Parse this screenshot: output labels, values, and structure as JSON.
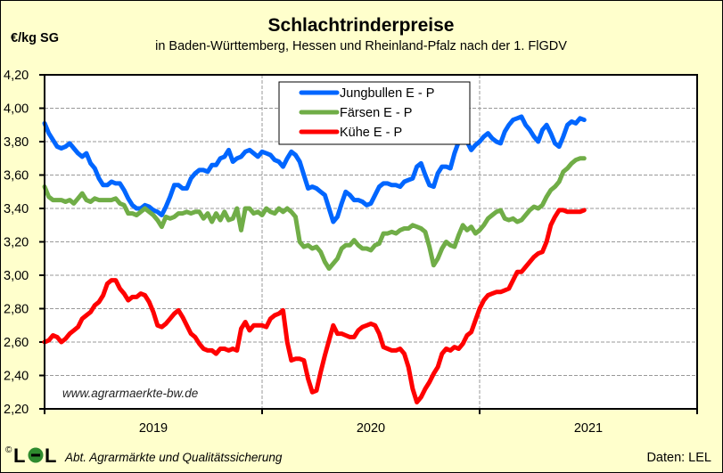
{
  "chart_data": {
    "type": "line",
    "title": "Schlachtrinderpreise",
    "subtitle": "in Baden-Württemberg, Hessen  und  Rheinland-Pfalz  nach der 1. FlGDV",
    "ylabel": "€/kg SG",
    "xlabel": "",
    "ylim": [
      2.2,
      4.2
    ],
    "yticks": [
      "2,20",
      "2,40",
      "2,60",
      "2,80",
      "3,00",
      "3,20",
      "3,40",
      "3,60",
      "3,80",
      "4,00",
      "4,20"
    ],
    "ytick_values": [
      2.2,
      2.4,
      2.6,
      2.8,
      3.0,
      3.2,
      3.4,
      3.6,
      3.8,
      4.0,
      4.2
    ],
    "x_unit": "weeks since start of plotted period (52 weeks per year band)",
    "xlim": [
      0,
      156
    ],
    "year_labels": [
      "2019",
      "2020",
      "2021"
    ],
    "year_boundaries": [
      52,
      104
    ],
    "grid": true,
    "legend_position": "top-center",
    "watermark": "www.agrarmaerkte-bw.de",
    "series": [
      {
        "name": "Jungbullen E - P",
        "color": "#0066ff",
        "x": [
          0,
          1,
          2,
          3,
          4,
          5,
          6,
          7,
          8,
          9,
          10,
          11,
          12,
          13,
          14,
          15,
          16,
          17,
          18,
          19,
          20,
          21,
          22,
          23,
          24,
          25,
          26,
          27,
          28,
          29,
          30,
          31,
          32,
          33,
          34,
          35,
          36,
          37,
          38,
          39,
          40,
          41,
          42,
          43,
          44,
          45,
          46,
          47,
          48,
          49,
          50,
          51,
          52,
          53,
          54,
          55,
          56,
          57,
          58,
          59,
          60,
          61,
          62,
          63,
          64,
          65,
          66,
          67,
          68,
          69,
          70,
          71,
          72,
          73,
          74,
          75,
          76,
          77,
          78,
          79,
          80,
          81,
          82,
          83,
          84,
          85,
          86,
          87,
          88,
          89,
          90,
          91,
          92,
          93,
          94,
          95,
          96,
          97,
          98,
          99,
          100,
          101,
          102,
          103,
          104,
          105,
          106,
          107,
          108,
          109,
          110,
          111,
          112,
          113,
          114,
          115,
          116,
          117,
          118,
          119,
          120,
          121,
          122,
          123,
          124,
          125,
          126,
          127,
          128,
          129
        ],
        "values": [
          3.91,
          3.85,
          3.81,
          3.77,
          3.76,
          3.77,
          3.79,
          3.76,
          3.73,
          3.71,
          3.73,
          3.67,
          3.64,
          3.58,
          3.54,
          3.54,
          3.56,
          3.55,
          3.55,
          3.51,
          3.46,
          3.42,
          3.4,
          3.4,
          3.42,
          3.41,
          3.39,
          3.38,
          3.36,
          3.41,
          3.47,
          3.54,
          3.54,
          3.52,
          3.52,
          3.58,
          3.61,
          3.63,
          3.63,
          3.62,
          3.66,
          3.66,
          3.7,
          3.71,
          3.75,
          3.68,
          3.7,
          3.71,
          3.74,
          3.75,
          3.73,
          3.71,
          3.74,
          3.73,
          3.72,
          3.69,
          3.68,
          3.65,
          3.7,
          3.74,
          3.72,
          3.68,
          3.6,
          3.52,
          3.53,
          3.52,
          3.5,
          3.48,
          3.4,
          3.32,
          3.35,
          3.43,
          3.5,
          3.48,
          3.45,
          3.45,
          3.44,
          3.42,
          3.43,
          3.48,
          3.53,
          3.55,
          3.55,
          3.54,
          3.54,
          3.53,
          3.56,
          3.57,
          3.58,
          3.65,
          3.67,
          3.6,
          3.54,
          3.53,
          3.61,
          3.65,
          3.65,
          3.64,
          3.73,
          3.8,
          3.82,
          3.8,
          3.75,
          3.78,
          3.8,
          3.83,
          3.85,
          3.82,
          3.8,
          3.79,
          3.86,
          3.9,
          3.93,
          3.94,
          3.95,
          3.9,
          3.87,
          3.83,
          3.8,
          3.87,
          3.9,
          3.85,
          3.79,
          3.77,
          3.83,
          3.9,
          3.92,
          3.91,
          3.94,
          3.93
        ],
        "_note": "values sampled weekly"
      },
      {
        "name": "Färsen E - P",
        "color": "#70ad47",
        "x": [
          0,
          1,
          2,
          3,
          4,
          5,
          6,
          7,
          8,
          9,
          10,
          11,
          12,
          13,
          14,
          15,
          16,
          17,
          18,
          19,
          20,
          21,
          22,
          23,
          24,
          25,
          26,
          27,
          28,
          29,
          30,
          31,
          32,
          33,
          34,
          35,
          36,
          37,
          38,
          39,
          40,
          41,
          42,
          43,
          44,
          45,
          46,
          47,
          48,
          49,
          50,
          51,
          52,
          53,
          54,
          55,
          56,
          57,
          58,
          59,
          60,
          61,
          62,
          63,
          64,
          65,
          66,
          67,
          68,
          69,
          70,
          71,
          72,
          73,
          74,
          75,
          76,
          77,
          78,
          79,
          80,
          81,
          82,
          83,
          84,
          85,
          86,
          87,
          88,
          89,
          90,
          91,
          92,
          93,
          94,
          95,
          96,
          97,
          98,
          99,
          100,
          101,
          102,
          103,
          104,
          105,
          106,
          107,
          108,
          109,
          110,
          111,
          112,
          113,
          114,
          115,
          116,
          117,
          118,
          119,
          120,
          121,
          122,
          123,
          124,
          125,
          126,
          127,
          128,
          129
        ],
        "values": [
          3.53,
          3.47,
          3.45,
          3.45,
          3.45,
          3.44,
          3.45,
          3.43,
          3.46,
          3.49,
          3.45,
          3.44,
          3.46,
          3.45,
          3.45,
          3.45,
          3.45,
          3.46,
          3.43,
          3.42,
          3.37,
          3.37,
          3.36,
          3.38,
          3.4,
          3.38,
          3.36,
          3.33,
          3.29,
          3.35,
          3.34,
          3.35,
          3.37,
          3.37,
          3.38,
          3.37,
          3.38,
          3.38,
          3.34,
          3.37,
          3.32,
          3.37,
          3.33,
          3.38,
          3.33,
          3.34,
          3.4,
          3.27,
          3.4,
          3.4,
          3.37,
          3.38,
          3.36,
          3.4,
          3.38,
          3.37,
          3.4,
          3.38,
          3.4,
          3.38,
          3.35,
          3.2,
          3.17,
          3.18,
          3.16,
          3.17,
          3.14,
          3.08,
          3.04,
          3.07,
          3.1,
          3.16,
          3.18,
          3.18,
          3.21,
          3.18,
          3.16,
          3.16,
          3.15,
          3.18,
          3.19,
          3.25,
          3.25,
          3.26,
          3.25,
          3.27,
          3.28,
          3.28,
          3.3,
          3.29,
          3.28,
          3.26,
          3.17,
          3.06,
          3.1,
          3.16,
          3.2,
          3.18,
          3.17,
          3.24,
          3.3,
          3.27,
          3.29,
          3.25,
          3.27,
          3.3,
          3.34,
          3.36,
          3.38,
          3.39,
          3.34,
          3.33,
          3.34,
          3.32,
          3.33,
          3.36,
          3.39,
          3.41,
          3.4,
          3.42,
          3.47,
          3.51,
          3.53,
          3.56,
          3.62,
          3.64,
          3.67,
          3.69,
          3.7,
          3.7
        ]
      },
      {
        "name": "Kühe E - P",
        "color": "#ff0000",
        "x": [
          0,
          1,
          2,
          3,
          4,
          5,
          6,
          7,
          8,
          9,
          10,
          11,
          12,
          13,
          14,
          15,
          16,
          17,
          18,
          19,
          20,
          21,
          22,
          23,
          24,
          25,
          26,
          27,
          28,
          29,
          30,
          31,
          32,
          33,
          34,
          35,
          36,
          37,
          38,
          39,
          40,
          41,
          42,
          43,
          44,
          45,
          46,
          47,
          48,
          49,
          50,
          51,
          52,
          53,
          54,
          55,
          56,
          57,
          58,
          59,
          60,
          61,
          62,
          63,
          64,
          65,
          66,
          67,
          68,
          69,
          70,
          71,
          72,
          73,
          74,
          75,
          76,
          77,
          78,
          79,
          80,
          81,
          82,
          83,
          84,
          85,
          86,
          87,
          88,
          89,
          90,
          91,
          92,
          93,
          94,
          95,
          96,
          97,
          98,
          99,
          100,
          101,
          102,
          103,
          104,
          105,
          106,
          107,
          108,
          109,
          110,
          111,
          112,
          113,
          114,
          115,
          116,
          117,
          118,
          119,
          120,
          121,
          122,
          123,
          124,
          125,
          126,
          127,
          128,
          129
        ],
        "values": [
          2.6,
          2.61,
          2.64,
          2.63,
          2.6,
          2.62,
          2.65,
          2.67,
          2.69,
          2.74,
          2.76,
          2.78,
          2.82,
          2.84,
          2.88,
          2.95,
          2.97,
          2.97,
          2.92,
          2.89,
          2.85,
          2.87,
          2.87,
          2.89,
          2.88,
          2.84,
          2.78,
          2.7,
          2.69,
          2.71,
          2.74,
          2.77,
          2.79,
          2.75,
          2.7,
          2.65,
          2.63,
          2.59,
          2.56,
          2.55,
          2.55,
          2.53,
          2.56,
          2.56,
          2.55,
          2.56,
          2.55,
          2.68,
          2.72,
          2.67,
          2.7,
          2.7,
          2.7,
          2.69,
          2.74,
          2.76,
          2.77,
          2.79,
          2.6,
          2.49,
          2.5,
          2.5,
          2.49,
          2.38,
          2.3,
          2.31,
          2.42,
          2.52,
          2.61,
          2.7,
          2.65,
          2.65,
          2.64,
          2.63,
          2.63,
          2.67,
          2.69,
          2.7,
          2.71,
          2.7,
          2.65,
          2.57,
          2.56,
          2.55,
          2.55,
          2.56,
          2.53,
          2.45,
          2.32,
          2.24,
          2.27,
          2.32,
          2.36,
          2.41,
          2.45,
          2.53,
          2.56,
          2.55,
          2.57,
          2.56,
          2.59,
          2.64,
          2.66,
          2.73,
          2.8,
          2.85,
          2.88,
          2.89,
          2.9,
          2.9,
          2.91,
          2.92,
          2.97,
          3.02,
          3.02,
          3.05,
          3.08,
          3.11,
          3.13,
          3.14,
          3.2,
          3.3,
          3.35,
          3.39,
          3.39,
          3.38,
          3.38,
          3.38,
          3.38,
          3.39
        ]
      }
    ]
  },
  "footer": {
    "copyright_symbol": "©",
    "logo_text": "LEL",
    "department": "Abt. Agrarmärkte und Qualitätssicherung",
    "source": "Daten: LEL"
  },
  "colors": {
    "background": "#ffffcc",
    "plot_background": "#ffffff",
    "grid": "#999999",
    "logo_green": "#2e8b2e"
  }
}
